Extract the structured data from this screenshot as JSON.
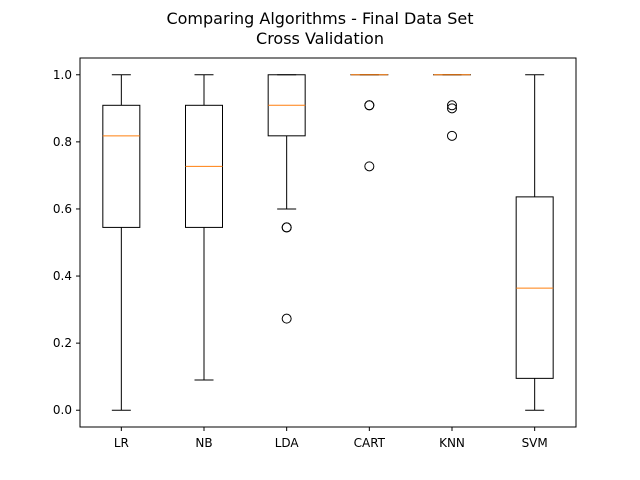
{
  "chart_data": {
    "type": "boxplot",
    "title_line1": "Comparing Algorithms - Final Data Set",
    "title_line2": "Cross Validation",
    "xlabel": "",
    "ylabel": "",
    "ylim": [
      -0.05,
      1.05
    ],
    "yticks": [
      0.0,
      0.2,
      0.4,
      0.6,
      0.8,
      1.0
    ],
    "ytick_labels": [
      "0.0",
      "0.2",
      "0.4",
      "0.6",
      "0.8",
      "1.0"
    ],
    "categories": [
      "LR",
      "NB",
      "LDA",
      "CART",
      "KNN",
      "SVM"
    ],
    "boxes": [
      {
        "label": "LR",
        "whisker_low": 0.0,
        "q1": 0.545,
        "median": 0.818,
        "q3": 0.909,
        "whisker_high": 1.0,
        "outliers": []
      },
      {
        "label": "NB",
        "whisker_low": 0.09,
        "q1": 0.545,
        "median": 0.727,
        "q3": 0.909,
        "whisker_high": 1.0,
        "outliers": []
      },
      {
        "label": "LDA",
        "whisker_low": 0.6,
        "q1": 0.818,
        "median": 0.909,
        "q3": 1.0,
        "whisker_high": 1.0,
        "outliers": [
          0.545,
          0.545,
          0.273
        ]
      },
      {
        "label": "CART",
        "whisker_low": 1.0,
        "q1": 1.0,
        "median": 1.0,
        "q3": 1.0,
        "whisker_high": 1.0,
        "outliers": [
          0.909,
          0.909,
          0.727
        ]
      },
      {
        "label": "KNN",
        "whisker_low": 1.0,
        "q1": 1.0,
        "median": 1.0,
        "q3": 1.0,
        "whisker_high": 1.0,
        "outliers": [
          0.909,
          0.9,
          0.818
        ]
      },
      {
        "label": "SVM",
        "whisker_low": 0.0,
        "q1": 0.095,
        "median": 0.364,
        "q3": 0.636,
        "whisker_high": 1.0,
        "outliers": []
      }
    ],
    "colors": {
      "box": "#000000",
      "median": "#ff7f0e",
      "background": "#ffffff"
    },
    "grid": false
  }
}
